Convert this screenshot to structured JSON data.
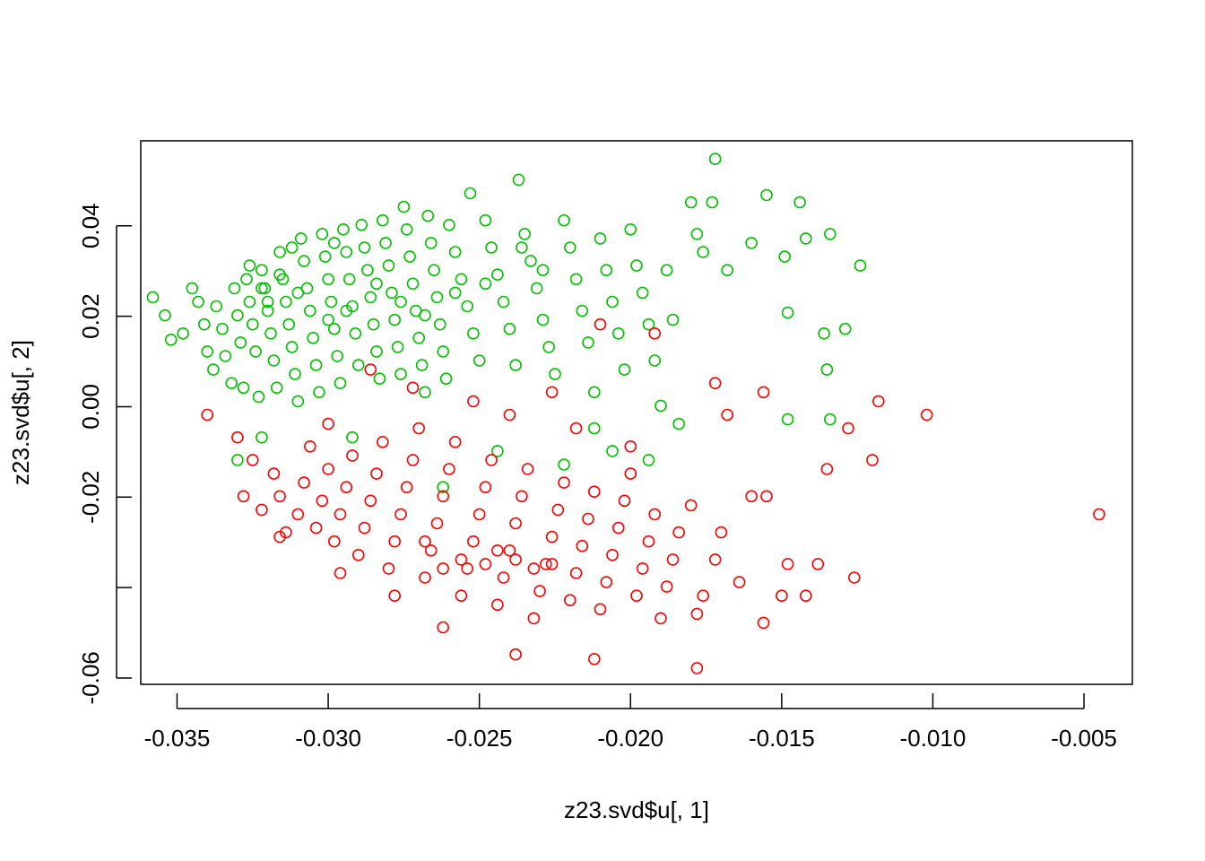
{
  "chart_data": {
    "type": "scatter",
    "title": "",
    "xlabel": "z23.svd$u[, 1]",
    "ylabel": "z23.svd$u[, 2]",
    "xlim": [
      -0.0362,
      -0.0034
    ],
    "ylim": [
      -0.0614,
      0.0588
    ],
    "x_ticks": [
      -0.035,
      -0.03,
      -0.025,
      -0.02,
      -0.015,
      -0.01,
      -0.005
    ],
    "x_tick_labels": [
      "-0.035",
      "-0.030",
      "-0.025",
      "-0.020",
      "-0.015",
      "-0.010",
      "-0.005"
    ],
    "y_ticks": [
      -0.06,
      -0.04,
      -0.02,
      0.0,
      0.02,
      0.04
    ],
    "y_tick_labels": [
      "-0.06",
      "",
      "-0.02",
      "0.00",
      "0.02",
      "0.04"
    ],
    "marker": "open-circle",
    "grid": false,
    "legend": "none",
    "series": [
      {
        "color": "#00C000",
        "points": [
          [
            -0.0358,
            0.0242
          ],
          [
            -0.0354,
            0.0202
          ],
          [
            -0.0352,
            0.0148
          ],
          [
            -0.0348,
            0.0162
          ],
          [
            -0.0345,
            0.0262
          ],
          [
            -0.0343,
            0.0232
          ],
          [
            -0.0341,
            0.0182
          ],
          [
            -0.034,
            0.0122
          ],
          [
            -0.0338,
            0.0082
          ],
          [
            -0.0337,
            0.0222
          ],
          [
            -0.0335,
            0.0172
          ],
          [
            -0.0334,
            0.0112
          ],
          [
            -0.0332,
            0.0052
          ],
          [
            -0.0331,
            0.0262
          ],
          [
            -0.033,
            0.0202
          ],
          [
            -0.0329,
            0.0142
          ],
          [
            -0.0328,
            0.0042
          ],
          [
            -0.0327,
            0.0282
          ],
          [
            -0.0326,
            0.0232
          ],
          [
            -0.0325,
            0.0182
          ],
          [
            -0.0324,
            0.0122
          ],
          [
            -0.0323,
            0.0022
          ],
          [
            -0.0322,
            0.0302
          ],
          [
            -0.0321,
            0.0262
          ],
          [
            -0.032,
            0.0212
          ],
          [
            -0.0319,
            0.0162
          ],
          [
            -0.0318,
            0.0102
          ],
          [
            -0.0317,
            0.0042
          ],
          [
            -0.0316,
            0.0342
          ],
          [
            -0.0315,
            0.0282
          ],
          [
            -0.0314,
            0.0232
          ],
          [
            -0.0313,
            0.0182
          ],
          [
            -0.0312,
            0.0132
          ],
          [
            -0.0311,
            0.0072
          ],
          [
            -0.031,
            0.0012
          ],
          [
            -0.0309,
            0.0372
          ],
          [
            -0.0308,
            0.0322
          ],
          [
            -0.0307,
            0.0262
          ],
          [
            -0.0306,
            0.0212
          ],
          [
            -0.0305,
            0.0152
          ],
          [
            -0.0304,
            0.0092
          ],
          [
            -0.0303,
            0.0032
          ],
          [
            -0.0302,
            0.0382
          ],
          [
            -0.0301,
            0.0332
          ],
          [
            -0.03,
            0.0282
          ],
          [
            -0.0299,
            0.0232
          ],
          [
            -0.0298,
            0.0172
          ],
          [
            -0.0297,
            0.0112
          ],
          [
            -0.0296,
            0.0052
          ],
          [
            -0.0295,
            0.0392
          ],
          [
            -0.0294,
            0.0342
          ],
          [
            -0.0293,
            0.0282
          ],
          [
            -0.0292,
            0.0222
          ],
          [
            -0.0291,
            0.0162
          ],
          [
            -0.029,
            0.0092
          ],
          [
            -0.0289,
            0.0402
          ],
          [
            -0.0288,
            0.0352
          ],
          [
            -0.0287,
            0.0302
          ],
          [
            -0.0286,
            0.0242
          ],
          [
            -0.0285,
            0.0182
          ],
          [
            -0.0284,
            0.0122
          ],
          [
            -0.0283,
            0.0062
          ],
          [
            -0.0282,
            0.0412
          ],
          [
            -0.0281,
            0.0362
          ],
          [
            -0.028,
            0.0312
          ],
          [
            -0.0279,
            0.0252
          ],
          [
            -0.0278,
            0.0192
          ],
          [
            -0.0277,
            0.0132
          ],
          [
            -0.0276,
            0.0072
          ],
          [
            -0.0275,
            0.0442
          ],
          [
            -0.0274,
            0.0392
          ],
          [
            -0.0273,
            0.0332
          ],
          [
            -0.0272,
            0.0272
          ],
          [
            -0.0271,
            0.0212
          ],
          [
            -0.027,
            0.0152
          ],
          [
            -0.0269,
            0.0092
          ],
          [
            -0.0268,
            0.0032
          ],
          [
            -0.0267,
            0.0422
          ],
          [
            -0.0266,
            0.0362
          ],
          [
            -0.0265,
            0.0302
          ],
          [
            -0.0264,
            0.0242
          ],
          [
            -0.0263,
            0.0182
          ],
          [
            -0.0262,
            0.0122
          ],
          [
            -0.0261,
            0.0062
          ],
          [
            -0.026,
            0.0402
          ],
          [
            -0.0258,
            0.0342
          ],
          [
            -0.0256,
            0.0282
          ],
          [
            -0.0254,
            0.0222
          ],
          [
            -0.0252,
            0.0162
          ],
          [
            -0.025,
            0.0102
          ],
          [
            -0.0253,
            0.0472
          ],
          [
            -0.0248,
            0.0412
          ],
          [
            -0.0246,
            0.0352
          ],
          [
            -0.0244,
            0.0292
          ],
          [
            -0.0242,
            0.0232
          ],
          [
            -0.024,
            0.0172
          ],
          [
            -0.0238,
            0.0092
          ],
          [
            -0.0237,
            0.0502
          ],
          [
            -0.0235,
            0.0382
          ],
          [
            -0.0233,
            0.0322
          ],
          [
            -0.0231,
            0.0262
          ],
          [
            -0.0229,
            0.0192
          ],
          [
            -0.0227,
            0.0132
          ],
          [
            -0.0225,
            0.0072
          ],
          [
            -0.0222,
            0.0412
          ],
          [
            -0.022,
            0.0352
          ],
          [
            -0.0218,
            0.0282
          ],
          [
            -0.0216,
            0.0212
          ],
          [
            -0.0214,
            0.0142
          ],
          [
            -0.0212,
            0.0032
          ],
          [
            -0.021,
            0.0372
          ],
          [
            -0.0208,
            0.0302
          ],
          [
            -0.0206,
            0.0232
          ],
          [
            -0.0204,
            0.0162
          ],
          [
            -0.0202,
            0.0082
          ],
          [
            -0.02,
            0.0392
          ],
          [
            -0.0198,
            0.0312
          ],
          [
            -0.0196,
            0.0252
          ],
          [
            -0.0194,
            0.0182
          ],
          [
            -0.0192,
            0.0102
          ],
          [
            -0.019,
            0.0002
          ],
          [
            -0.0188,
            0.0302
          ],
          [
            -0.0186,
            0.0192
          ],
          [
            -0.0184,
            -0.0038
          ],
          [
            -0.018,
            0.0452
          ],
          [
            -0.0178,
            0.0382
          ],
          [
            -0.0176,
            0.0342
          ],
          [
            -0.0173,
            0.0452
          ],
          [
            -0.0172,
            0.0548
          ],
          [
            -0.0168,
            0.0302
          ],
          [
            -0.016,
            0.0362
          ],
          [
            -0.0155,
            0.0468
          ],
          [
            -0.0149,
            0.0332
          ],
          [
            -0.0148,
            0.0208
          ],
          [
            -0.0144,
            0.0452
          ],
          [
            -0.0142,
            0.0372
          ],
          [
            -0.0136,
            0.0162
          ],
          [
            -0.0134,
            0.0382
          ],
          [
            -0.0129,
            0.0172
          ],
          [
            -0.0124,
            0.0312
          ],
          [
            -0.0135,
            0.0082
          ],
          [
            -0.0134,
            -0.0028
          ],
          [
            -0.0148,
            -0.0028
          ],
          [
            -0.0194,
            -0.0118
          ],
          [
            -0.0206,
            -0.0098
          ],
          [
            -0.0212,
            -0.0048
          ],
          [
            -0.0222,
            -0.0128
          ],
          [
            -0.0244,
            -0.0098
          ],
          [
            -0.0262,
            -0.0178
          ],
          [
            -0.0292,
            -0.0068
          ],
          [
            -0.0322,
            -0.0068
          ],
          [
            -0.033,
            -0.0118
          ],
          [
            -0.0316,
            0.0292
          ],
          [
            -0.0326,
            0.0312
          ],
          [
            -0.032,
            0.0232
          ],
          [
            -0.031,
            0.0252
          ],
          [
            -0.03,
            0.0192
          ],
          [
            -0.0294,
            0.0212
          ],
          [
            -0.0284,
            0.0272
          ],
          [
            -0.0276,
            0.0232
          ],
          [
            -0.0268,
            0.0202
          ],
          [
            -0.0258,
            0.0252
          ],
          [
            -0.0248,
            0.0272
          ],
          [
            -0.0236,
            0.0352
          ],
          [
            -0.0229,
            0.0302
          ],
          [
            -0.0298,
            0.0362
          ],
          [
            -0.0312,
            0.0352
          ],
          [
            -0.0322,
            0.0262
          ]
        ]
      },
      {
        "color": "#FF0000",
        "points": [
          [
            -0.034,
            -0.0018
          ],
          [
            -0.033,
            -0.0068
          ],
          [
            -0.0328,
            -0.0198
          ],
          [
            -0.0325,
            -0.0118
          ],
          [
            -0.0322,
            -0.0228
          ],
          [
            -0.0318,
            -0.0148
          ],
          [
            -0.0316,
            -0.0198
          ],
          [
            -0.0314,
            -0.0278
          ],
          [
            -0.031,
            -0.0238
          ],
          [
            -0.0308,
            -0.0168
          ],
          [
            -0.0306,
            -0.0088
          ],
          [
            -0.0304,
            -0.0268
          ],
          [
            -0.0302,
            -0.0208
          ],
          [
            -0.03,
            -0.0138
          ],
          [
            -0.0298,
            -0.0298
          ],
          [
            -0.0296,
            -0.0238
          ],
          [
            -0.0294,
            -0.0178
          ],
          [
            -0.0292,
            -0.0108
          ],
          [
            -0.029,
            -0.0328
          ],
          [
            -0.0288,
            -0.0268
          ],
          [
            -0.0286,
            -0.0208
          ],
          [
            -0.0284,
            -0.0148
          ],
          [
            -0.0282,
            -0.0078
          ],
          [
            -0.028,
            -0.0358
          ],
          [
            -0.0278,
            -0.0298
          ],
          [
            -0.0276,
            -0.0238
          ],
          [
            -0.0274,
            -0.0178
          ],
          [
            -0.0272,
            -0.0118
          ],
          [
            -0.027,
            -0.0048
          ],
          [
            -0.0268,
            -0.0378
          ],
          [
            -0.0266,
            -0.0318
          ],
          [
            -0.0264,
            -0.0258
          ],
          [
            -0.0262,
            -0.0198
          ],
          [
            -0.026,
            -0.0138
          ],
          [
            -0.0258,
            -0.0078
          ],
          [
            -0.0256,
            -0.0418
          ],
          [
            -0.0254,
            -0.0358
          ],
          [
            -0.0252,
            -0.0298
          ],
          [
            -0.025,
            -0.0238
          ],
          [
            -0.0248,
            -0.0178
          ],
          [
            -0.0246,
            -0.0118
          ],
          [
            -0.0244,
            -0.0438
          ],
          [
            -0.0242,
            -0.0378
          ],
          [
            -0.024,
            -0.0318
          ],
          [
            -0.0238,
            -0.0258
          ],
          [
            -0.0236,
            -0.0198
          ],
          [
            -0.0234,
            -0.0138
          ],
          [
            -0.0232,
            -0.0468
          ],
          [
            -0.023,
            -0.0408
          ],
          [
            -0.0228,
            -0.0348
          ],
          [
            -0.0226,
            -0.0288
          ],
          [
            -0.0224,
            -0.0228
          ],
          [
            -0.0222,
            -0.0168
          ],
          [
            -0.022,
            -0.0428
          ],
          [
            -0.0218,
            -0.0368
          ],
          [
            -0.0216,
            -0.0308
          ],
          [
            -0.0214,
            -0.0248
          ],
          [
            -0.0212,
            -0.0188
          ],
          [
            -0.021,
            -0.0448
          ],
          [
            -0.0208,
            -0.0388
          ],
          [
            -0.0206,
            -0.0328
          ],
          [
            -0.0204,
            -0.0268
          ],
          [
            -0.0202,
            -0.0208
          ],
          [
            -0.02,
            -0.0148
          ],
          [
            -0.0198,
            -0.0418
          ],
          [
            -0.0196,
            -0.0358
          ],
          [
            -0.0194,
            -0.0298
          ],
          [
            -0.0192,
            -0.0238
          ],
          [
            -0.019,
            -0.0468
          ],
          [
            -0.0188,
            -0.0398
          ],
          [
            -0.0186,
            -0.0338
          ],
          [
            -0.0184,
            -0.0278
          ],
          [
            -0.018,
            -0.0218
          ],
          [
            -0.0178,
            -0.0458
          ],
          [
            -0.0176,
            -0.0418
          ],
          [
            -0.0172,
            -0.0338
          ],
          [
            -0.017,
            -0.0278
          ],
          [
            -0.0168,
            -0.0018
          ],
          [
            -0.0164,
            -0.0388
          ],
          [
            -0.016,
            -0.0198
          ],
          [
            -0.0156,
            -0.0478
          ],
          [
            -0.0156,
            0.0032
          ],
          [
            -0.0155,
            -0.0198
          ],
          [
            -0.015,
            -0.0418
          ],
          [
            -0.0148,
            -0.0348
          ],
          [
            -0.0142,
            -0.0418
          ],
          [
            -0.0138,
            -0.0348
          ],
          [
            -0.0135,
            -0.0138
          ],
          [
            -0.0128,
            -0.0048
          ],
          [
            -0.0126,
            -0.0378
          ],
          [
            -0.0118,
            0.0012
          ],
          [
            -0.012,
            -0.0118
          ],
          [
            -0.0102,
            -0.0018
          ],
          [
            -0.0045,
            -0.0238
          ],
          [
            -0.0172,
            0.0052
          ],
          [
            -0.0178,
            -0.0578
          ],
          [
            -0.0212,
            -0.0558
          ],
          [
            -0.0238,
            -0.0548
          ],
          [
            -0.0262,
            -0.0488
          ],
          [
            -0.0278,
            -0.0418
          ],
          [
            -0.0296,
            -0.0368
          ],
          [
            -0.0316,
            -0.0288
          ],
          [
            -0.0286,
            0.0082
          ],
          [
            -0.03,
            -0.0038
          ],
          [
            -0.0272,
            0.0042
          ],
          [
            -0.0252,
            0.0012
          ],
          [
            -0.024,
            -0.0018
          ],
          [
            -0.0226,
            0.0032
          ],
          [
            -0.0218,
            -0.0048
          ],
          [
            -0.021,
            0.0182
          ],
          [
            -0.02,
            -0.0088
          ],
          [
            -0.0192,
            0.0162
          ],
          [
            -0.0256,
            -0.0338
          ],
          [
            -0.0248,
            -0.0348
          ],
          [
            -0.0244,
            -0.0318
          ],
          [
            -0.0238,
            -0.0338
          ],
          [
            -0.0232,
            -0.0358
          ],
          [
            -0.0226,
            -0.0348
          ],
          [
            -0.0262,
            -0.0358
          ],
          [
            -0.0268,
            -0.0298
          ]
        ]
      }
    ]
  }
}
